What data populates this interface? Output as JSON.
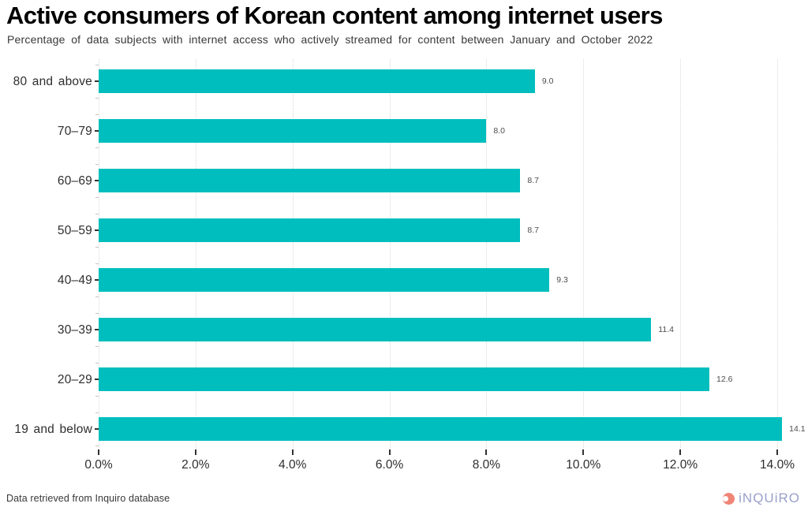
{
  "chart_data": {
    "type": "bar",
    "orientation": "horizontal",
    "title": "Active consumers of Korean content among internet users",
    "subtitle": "Percentage of data subjects with internet access who actively streamed for content between January and October 2022",
    "categories": [
      "80 and above",
      "70–79",
      "60–69",
      "50–59",
      "40–49",
      "30–39",
      "20–29",
      "19 and below"
    ],
    "values": [
      9.0,
      8.0,
      8.7,
      8.7,
      9.3,
      11.4,
      12.6,
      14.1
    ],
    "value_labels": [
      "9.0",
      "8.0",
      "8.7",
      "8.7",
      "9.3",
      "11.4",
      "12.6",
      "14.1"
    ],
    "xlim": [
      0,
      14
    ],
    "x_ticks": [
      0,
      2,
      4,
      6,
      8,
      10,
      12,
      14
    ],
    "x_tick_labels": [
      "0.0%",
      "2.0%",
      "4.0%",
      "6.0%",
      "8.0%",
      "10.0%",
      "12.0%",
      "14.0%"
    ],
    "xlabel": "",
    "ylabel": "",
    "grid": "vertical dotted gridlines at major x ticks, minor tick marks on y axis",
    "legend": "none",
    "source_note": "Data retrieved from Inquiro database"
  },
  "footer": {
    "logo_text": "iNQUiRO"
  },
  "colors": {
    "bar": "#00BEBE",
    "grid": "#D9D9D9",
    "tick_major": "#333333",
    "tick_minor": "#C4C4C4",
    "value_label": "#4D4D4D",
    "axis_text": "#2E2E2E",
    "title_text": "#000000",
    "subtitle_text": "#383838",
    "logo_text": "#99A1C9",
    "logo_icon": "#F08576"
  }
}
